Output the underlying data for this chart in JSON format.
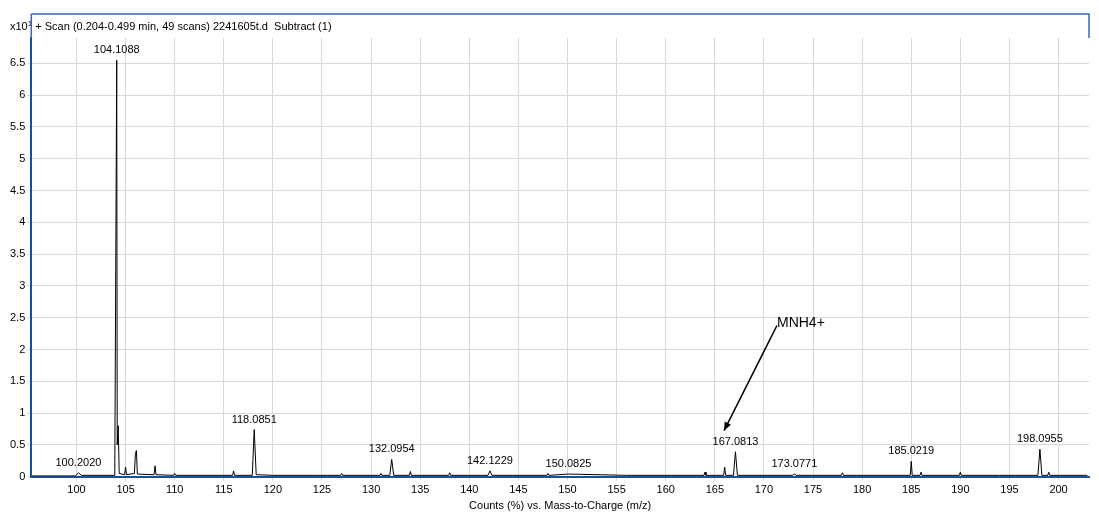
{
  "chart_data": {
    "type": "line",
    "title": "+ Scan (0.204-0.499 min, 49 scans) 2241605t.d  Subtract (1)",
    "xlabel": "Counts (%) vs. Mass-to-Charge (m/z)",
    "ylabel": "x10$^{1}$",
    "x": [
      95.5,
      99.9,
      100.2,
      100.5,
      103.9,
      104.1,
      104.15,
      104.25,
      104.35,
      104.9,
      105,
      105.1,
      105.9,
      106.0,
      106.1,
      106.2,
      107.9,
      108,
      108.1,
      109.9,
      110,
      110.1,
      115.9,
      116,
      116.1,
      117.9,
      118.1,
      118.3,
      120,
      124,
      126.9,
      127,
      127.1,
      130.9,
      131,
      131.1,
      131.9,
      132.1,
      132.3,
      133.9,
      134,
      134.1,
      137.9,
      138,
      138.1,
      141.9,
      142.1,
      142.3,
      147.9,
      148,
      148.1,
      150.1,
      156,
      163.9,
      164,
      164.1,
      165.9,
      166,
      166.1,
      166.9,
      167.1,
      167.3,
      172.9,
      173.1,
      173.3,
      177.9,
      178,
      178.1,
      181,
      184.9,
      185,
      185.1,
      185.9,
      186,
      186.1,
      189.9,
      190,
      190.1,
      194,
      197.9,
      198.1,
      198.3,
      198.9,
      199,
      199.1,
      202.9
    ],
    "series": [
      {
        "color": "#000000",
        "values": [
          0.01,
          0.01,
          0.06,
          0.02,
          0.02,
          6.55,
          0.5,
          0.8,
          0.05,
          0.03,
          0.15,
          0.03,
          0.05,
          0.36,
          0.41,
          0.04,
          0.03,
          0.17,
          0.03,
          0.02,
          0.05,
          0.02,
          0.02,
          0.09,
          0.02,
          0.02,
          0.74,
          0.03,
          0.02,
          0.02,
          0.02,
          0.05,
          0.02,
          0.02,
          0.05,
          0.02,
          0.02,
          0.27,
          0.02,
          0.02,
          0.08,
          0.02,
          0.02,
          0.06,
          0.02,
          0.02,
          0.09,
          0.02,
          0.02,
          0.05,
          0.02,
          0.04,
          0.02,
          0.02,
          0.07,
          0.02,
          0.02,
          0.15,
          0.02,
          0.02,
          0.39,
          0.02,
          0.02,
          0.04,
          0.02,
          0.02,
          0.06,
          0.02,
          0.02,
          0.02,
          0.24,
          0.02,
          0.02,
          0.07,
          0.02,
          0.02,
          0.07,
          0.02,
          0.02,
          0.02,
          0.43,
          0.02,
          0.02,
          0.07,
          0.02,
          0.02
        ]
      }
    ],
    "xlim": [
      95.4,
      203.1
    ],
    "ylim": [
      0,
      6.9
    ],
    "xticks": [
      100,
      105,
      110,
      115,
      120,
      125,
      130,
      135,
      140,
      145,
      150,
      155,
      160,
      165,
      170,
      175,
      180,
      185,
      190,
      195,
      200
    ],
    "yticks": [
      0,
      0.5,
      1,
      1.5,
      2,
      2.5,
      3,
      3.5,
      4,
      4.5,
      5,
      5.5,
      6,
      6.5
    ],
    "grid": true,
    "legend": false,
    "marker": "none",
    "line_style": "solid",
    "annotations": [
      {
        "text": "100.2020",
        "x": 100.2,
        "y": 0.06
      },
      {
        "text": "104.1088",
        "x": 104.1,
        "y": 6.55
      },
      {
        "text": "118.0851",
        "x": 118.1,
        "y": 0.74
      },
      {
        "text": "132.0954",
        "x": 132.1,
        "y": 0.27
      },
      {
        "text": "142.1229",
        "x": 142.1,
        "y": 0.09
      },
      {
        "text": "150.0825",
        "x": 150.1,
        "y": 0.04
      },
      {
        "text": "167.0813",
        "x": 167.1,
        "y": 0.39
      },
      {
        "text": "173.0771",
        "x": 173.1,
        "y": 0.04
      },
      {
        "text": "185.0219",
        "x": 185,
        "y": 0.24
      },
      {
        "text": "198.0955",
        "x": 198.1,
        "y": 0.43
      },
      "MNH4+"
    ]
  }
}
